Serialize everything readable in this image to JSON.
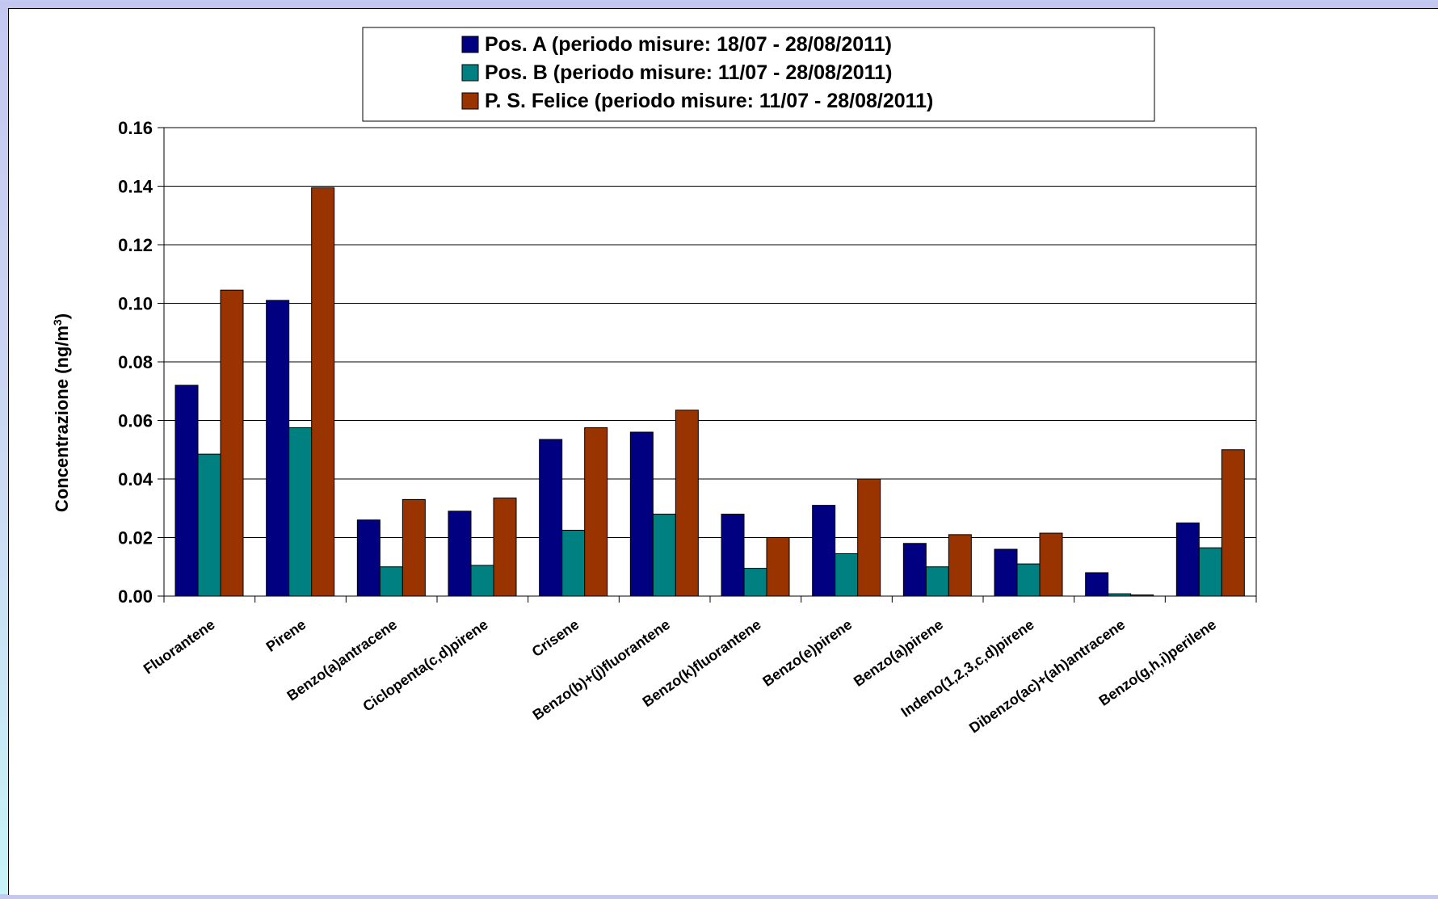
{
  "chart_data": {
    "type": "bar",
    "title": "",
    "xlabel": "",
    "ylabel": "Concentrazione (ng/m",
    "ylabel_sup": "3",
    "ylabel_close": ")",
    "ylim": [
      0,
      0.16
    ],
    "ytick_step": 0.02,
    "yticks": [
      "0.00",
      "0.02",
      "0.04",
      "0.06",
      "0.08",
      "0.10",
      "0.12",
      "0.14",
      "0.16"
    ],
    "grid": true,
    "legend_position": "top-center",
    "categories": [
      "Fluorantene",
      "Pirene",
      "Benzo(a)antracene",
      "Ciclopenta(c,d)pirene",
      "Crisene",
      "Benzo(b)+(j)fluorantene",
      "Benzo(k)fluorantene",
      "Benzo(e)pirene",
      "Benzo(a)pirene",
      "Indeno(1,2,3,c,d)pirene",
      "Dibenzo(ac)+(ah)antracene",
      "Benzo(g,h,i)perilene"
    ],
    "series": [
      {
        "name": "Pos. A (periodo misure: 18/07 - 28/08/2011)",
        "color": "#000080",
        "values": [
          0.072,
          0.101,
          0.026,
          0.029,
          0.0535,
          0.056,
          0.028,
          0.031,
          0.018,
          0.016,
          0.008,
          0.025
        ]
      },
      {
        "name": "Pos. B (periodo misure: 11/07 - 28/08/2011)",
        "color": "#008080",
        "values": [
          0.0485,
          0.0575,
          0.01,
          0.0105,
          0.0225,
          0.028,
          0.0095,
          0.0145,
          0.01,
          0.011,
          0.0008,
          0.0165
        ]
      },
      {
        "name": "P. S. Felice (periodo misure: 11/07 - 28/08/2011)",
        "color": "#993300",
        "values": [
          0.1045,
          0.1395,
          0.033,
          0.0335,
          0.0575,
          0.0635,
          0.02,
          0.04,
          0.021,
          0.0215,
          0.0004,
          0.05
        ]
      }
    ]
  }
}
